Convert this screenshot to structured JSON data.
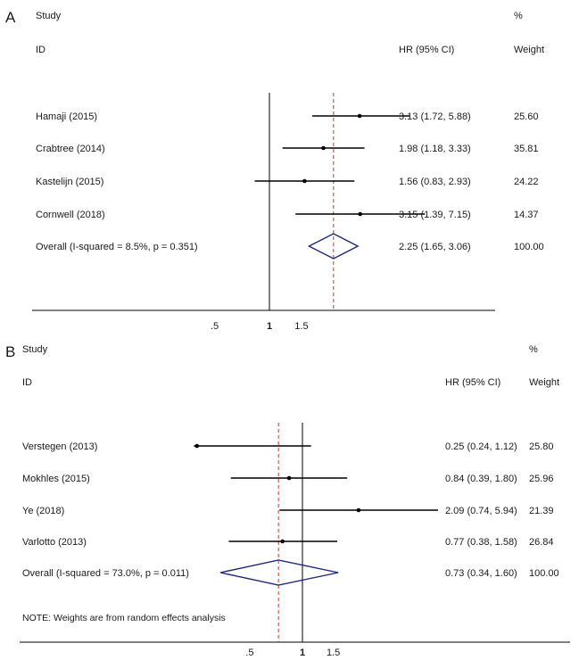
{
  "chart_data": [
    {
      "type": "forest",
      "panel": "A",
      "header": {
        "study_line1": "Study",
        "study_line2": "ID",
        "effect_label": "HR (95% CI)",
        "weight_line1": "%",
        "weight_line2": "Weight"
      },
      "studies": [
        {
          "name": "Hamaji (2015)",
          "hr": 3.13,
          "lower": 1.72,
          "upper": 5.88,
          "ci_text": "3.13 (1.72, 5.88)",
          "weight": "25.60"
        },
        {
          "name": "Crabtree (2014)",
          "hr": 1.98,
          "lower": 1.18,
          "upper": 3.33,
          "ci_text": "1.98 (1.18, 3.33)",
          "weight": "35.81"
        },
        {
          "name": "Kastelijn (2015)",
          "hr": 1.56,
          "lower": 0.83,
          "upper": 2.93,
          "ci_text": "1.56 (0.83, 2.93)",
          "weight": "24.22"
        },
        {
          "name": "Cornwell (2018)",
          "hr": 3.15,
          "lower": 1.39,
          "upper": 7.15,
          "ci_text": "3.15 (1.39, 7.15)",
          "weight": "14.37"
        }
      ],
      "overall": {
        "name": "Overall  (I-squared = 8.5%, p = 0.351)",
        "hr": 2.25,
        "lower": 1.65,
        "upper": 3.06,
        "ci_text": "2.25 (1.65, 3.06)",
        "weight": "100.00"
      },
      "x_ticks": [
        {
          "value": 0.5,
          "label": ".5"
        },
        {
          "value": 1,
          "label": "1"
        },
        {
          "value": 1.5,
          "label": "1.5"
        }
      ],
      "reference_value": 1,
      "scale": "log",
      "note": ""
    },
    {
      "type": "forest",
      "panel": "B",
      "header": {
        "study_line1": "Study",
        "study_line2": "ID",
        "effect_label": "HR (95% CI)",
        "weight_line1": "%",
        "weight_line2": "Weight"
      },
      "studies": [
        {
          "name": "Verstegen (2013)",
          "hr": 0.25,
          "lower": 0.24,
          "upper": 1.12,
          "ci_text": "0.25 (0.24, 1.12)",
          "weight": "25.80"
        },
        {
          "name": "Mokhles (2015)",
          "hr": 0.84,
          "lower": 0.39,
          "upper": 1.8,
          "ci_text": "0.84 (0.39, 1.80)",
          "weight": "25.96"
        },
        {
          "name": "Ye (2018)",
          "hr": 2.09,
          "lower": 0.74,
          "upper": 5.94,
          "ci_text": "2.09 (0.74, 5.94)",
          "weight": "21.39"
        },
        {
          "name": "Varlotto (2013)",
          "hr": 0.77,
          "lower": 0.38,
          "upper": 1.58,
          "ci_text": "0.77 (0.38, 1.58)",
          "weight": "26.84"
        }
      ],
      "overall": {
        "name": "Overall  (I-squared = 73.0%, p = 0.011)",
        "hr": 0.73,
        "lower": 0.34,
        "upper": 1.6,
        "ci_text": "0.73 (0.34, 1.60)",
        "weight": "100.00"
      },
      "x_ticks": [
        {
          "value": 0.5,
          "label": ".5"
        },
        {
          "value": 1,
          "label": "1"
        },
        {
          "value": 1.5,
          "label": "1.5"
        }
      ],
      "reference_value": 1,
      "scale": "log",
      "note": "NOTE: Weights are from random effects analysis"
    }
  ],
  "colors": {
    "text": "#1a1a1a",
    "axis": "#000000",
    "overall_line": "#c0392b",
    "diamond": "#1f2a7a"
  }
}
